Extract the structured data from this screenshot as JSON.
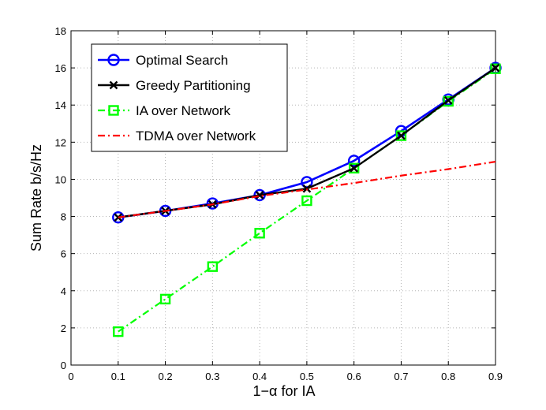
{
  "chart_data": {
    "type": "line",
    "title": "",
    "xlabel": "1−α for IA",
    "ylabel": "Sum Rate b/s/Hz",
    "xlim": [
      0,
      0.9
    ],
    "ylim": [
      0,
      18
    ],
    "xticks": [
      0,
      0.1,
      0.2,
      0.3,
      0.4,
      0.5,
      0.6,
      0.7,
      0.8,
      0.9
    ],
    "xtick_labels": [
      "0",
      "0.1",
      "0.2",
      "0.3",
      "0.4",
      "0.5",
      "0.6",
      "0.7",
      "0.8",
      "0.9"
    ],
    "yticks": [
      0,
      2,
      4,
      6,
      8,
      10,
      12,
      14,
      16,
      18
    ],
    "ytick_labels": [
      "0",
      "2",
      "4",
      "6",
      "8",
      "10",
      "12",
      "14",
      "16",
      "18"
    ],
    "grid": true,
    "legend_position": "top-left",
    "series": [
      {
        "name": "Optimal Search",
        "color": "#0000ff",
        "marker": "circle",
        "dash": "solid",
        "x": [
          0.1,
          0.2,
          0.3,
          0.4,
          0.5,
          0.6,
          0.7,
          0.8,
          0.9
        ],
        "values": [
          7.95,
          8.3,
          8.7,
          9.15,
          9.85,
          11.0,
          12.6,
          14.3,
          16.0
        ]
      },
      {
        "name": "Greedy Partitioning",
        "color": "#000000",
        "marker": "x",
        "dash": "solid",
        "x": [
          0.1,
          0.2,
          0.3,
          0.4,
          0.5,
          0.6,
          0.7,
          0.8,
          0.9
        ],
        "values": [
          7.95,
          8.3,
          8.65,
          9.15,
          9.5,
          10.6,
          12.35,
          14.25,
          16.0
        ]
      },
      {
        "name": "IA over Network",
        "color": "#00ff00",
        "marker": "square",
        "dash": "dashdot",
        "x": [
          0.1,
          0.2,
          0.3,
          0.4,
          0.5,
          0.6,
          0.7,
          0.8,
          0.9
        ],
        "values": [
          1.8,
          3.55,
          5.3,
          7.1,
          8.85,
          10.6,
          12.35,
          14.2,
          15.95
        ]
      },
      {
        "name": "TDMA over Network",
        "color": "#ff0000",
        "marker": "none",
        "dash": "dashdot",
        "x": [
          0.1,
          0.2,
          0.3,
          0.4,
          0.5,
          0.6,
          0.7,
          0.8,
          0.9
        ],
        "values": [
          7.95,
          8.3,
          8.65,
          9.1,
          9.45,
          9.8,
          10.2,
          10.55,
          10.95
        ]
      }
    ]
  }
}
